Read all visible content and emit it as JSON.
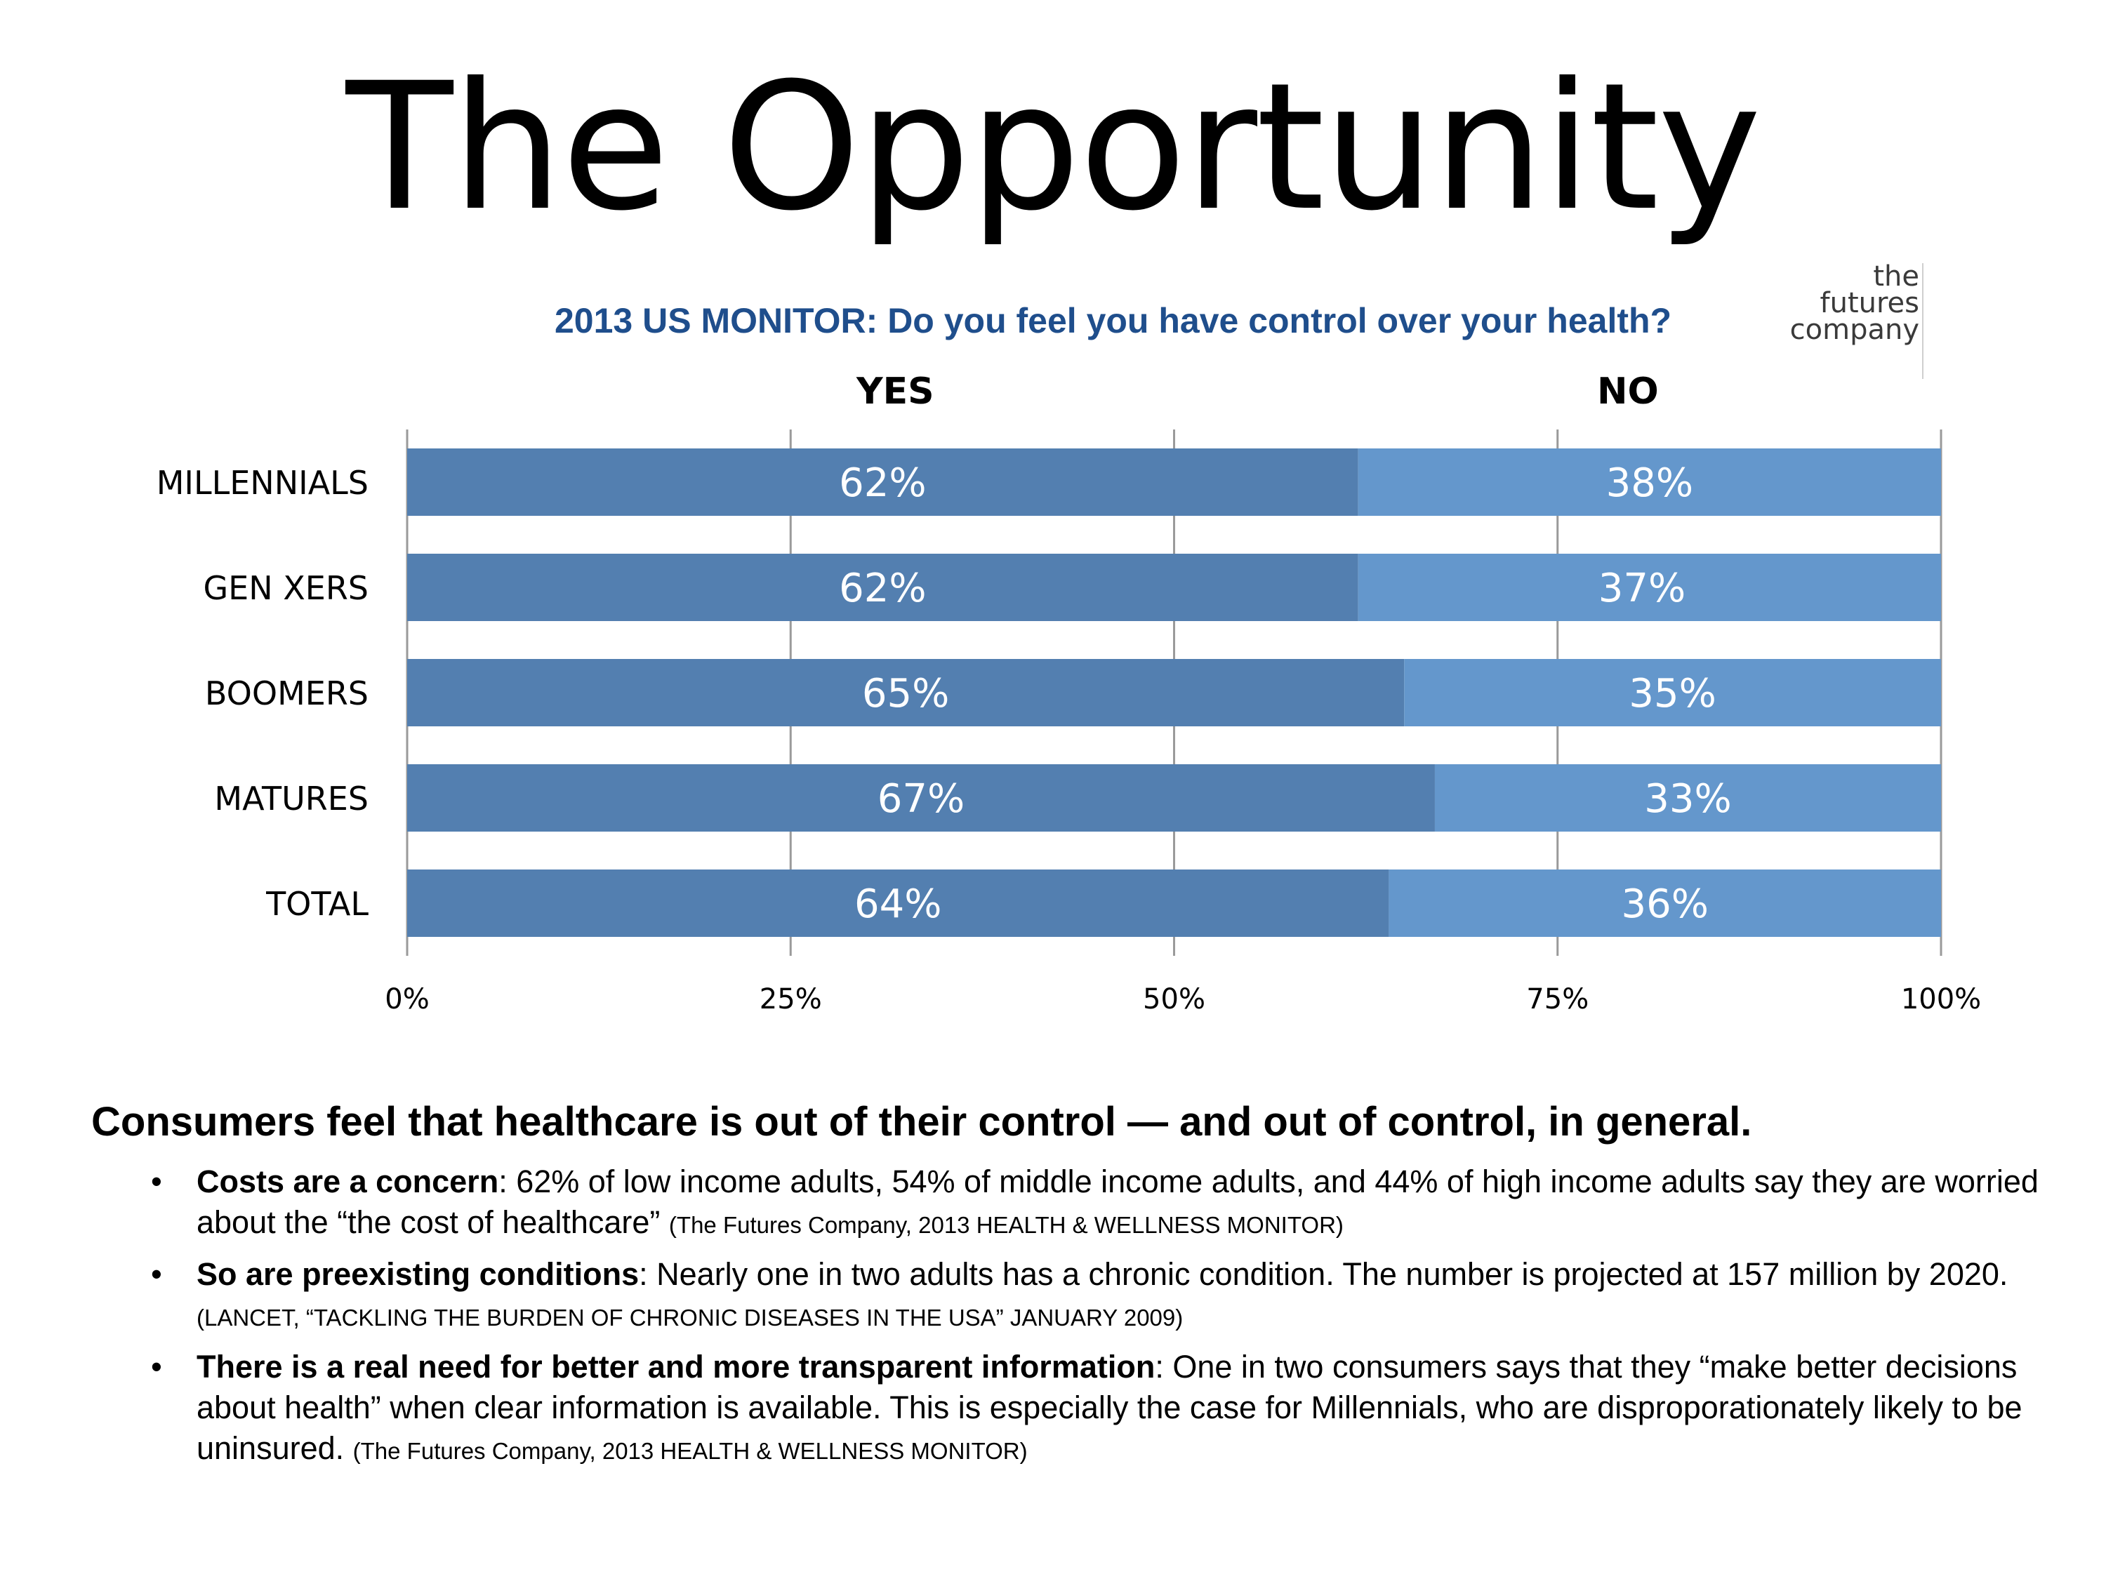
{
  "page": {
    "title": "The Opportunity",
    "logo": [
      "the",
      "futures",
      "company"
    ]
  },
  "chart_data": {
    "type": "bar",
    "orientation": "horizontal",
    "stacked": true,
    "title": "2013 US MONITOR: Do you feel you have control over your health?",
    "categories": [
      "MILLENNIALS",
      "GEN XERS",
      "BOOMERS",
      "MATURES",
      "TOTAL"
    ],
    "series": [
      {
        "name": "YES",
        "values": [
          62,
          62,
          65,
          67,
          64
        ],
        "labels": [
          "62%",
          "62%",
          "65%",
          "67%",
          "64%"
        ],
        "color": "#537fb0"
      },
      {
        "name": "NO",
        "values": [
          38,
          37,
          35,
          33,
          36
        ],
        "labels": [
          "38%",
          "37%",
          "35%",
          "33%",
          "36%"
        ],
        "color": "#6497cc"
      }
    ],
    "x_ticks": [
      0,
      25,
      50,
      75,
      100
    ],
    "x_tick_labels": [
      "0%",
      "25%",
      "50%",
      "75%",
      "100%"
    ],
    "xlim": [
      0,
      100
    ],
    "grid": true,
    "legend": "top"
  },
  "text": {
    "headline": "Consumers feel that healthcare is out of their control — and out of control, in general.",
    "bullets": [
      {
        "lead": "Costs are a concern",
        "body": ": 62% of low income adults, 54% of middle income adults, and 44% of high income adults say they are worried about the “the cost of healthcare” ",
        "source": "(The Futures Company, 2013 HEALTH & WELLNESS MONITOR)"
      },
      {
        "lead": "So are preexisting conditions",
        "body": ": Nearly one in two adults has a chronic condition. The number is projected at 157 million by 2020. ",
        "source": "(LANCET, “TACKLING THE BURDEN OF CHRONIC DISEASES IN THE USA” JANUARY 2009)"
      },
      {
        "lead": "There is a real need for better and more transparent information",
        "body": ": One in two consumers says that they “make better decisions about health” when clear information is available. This is especially the case for Millennials, who are disproporationately likely to be uninsured. ",
        "source": "(The Futures Company, 2013 HEALTH & WELLNESS MONITOR)"
      }
    ]
  }
}
